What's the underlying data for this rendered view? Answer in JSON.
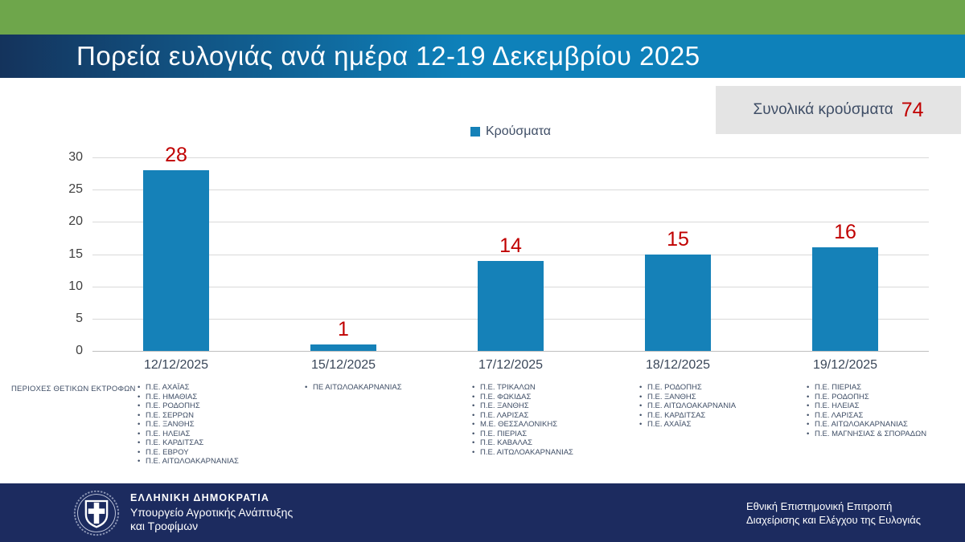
{
  "header": {
    "title": "Πορεία ευλογιάς ανά ημέρα 12-19 Δεκεμβρίου 2025"
  },
  "total_box": {
    "label": "Συνολικά κρούσματα",
    "value": "74"
  },
  "chart_data": {
    "type": "bar",
    "title": "Πορεία ευλογιάς ανά ημέρα 12-19 Δεκεμβρίου 2025",
    "categories": [
      "12/12/2025",
      "15/12/2025",
      "17/12/2025",
      "18/12/2025",
      "19/12/2025"
    ],
    "values": [
      28,
      1,
      14,
      15,
      16
    ],
    "data_labels": [
      "28",
      "1",
      "14",
      "15",
      "16"
    ],
    "legend": [
      "Κρούσματα"
    ],
    "legend_position": "top-center",
    "xlabel": "",
    "ylabel": "",
    "ylim": [
      0,
      30
    ],
    "yticks": [
      0,
      5,
      10,
      15,
      20,
      25,
      30
    ],
    "grid": true,
    "bar_color": "#1581B8",
    "data_label_color": "#C00000"
  },
  "regions": {
    "row_label": "ΠΕΡΙΟΧΕΣ ΘΕΤΙΚΩΝ ΕΚΤΡΟΦΩΝ",
    "columns": [
      [
        "Π.Ε. ΑΧΑΪΑΣ",
        "Π.Ε. ΗΜΑΘΙΑΣ",
        "Π.Ε. ΡΟΔΟΠΗΣ",
        "Π.Ε. ΣΕΡΡΩΝ",
        "Π.Ε. ΞΑΝΘΗΣ",
        "Π.Ε. ΗΛΕΙΑΣ",
        "Π.Ε. ΚΑΡΔΙΤΣΑΣ",
        "Π.Ε. ΕΒΡΟΥ",
        "Π.Ε. ΑΙΤΩΛΟΑΚΑΡΝΑΝΙΑΣ"
      ],
      [
        "ΠΕ ΑΙΤΩΛΟΑΚΑΡΝΑΝΙΑΣ"
      ],
      [
        "Π.Ε. ΤΡΙΚΑΛΩΝ",
        "Π.Ε. ΦΩΚΙΔΑΣ",
        "Π.Ε. ΞΑΝΘΗΣ",
        "Π.Ε. ΛΑΡΙΣΑΣ",
        "Μ.Ε. ΘΕΣΣΑΛΟΝΙΚΗΣ",
        "Π.Ε. ΠΙΕΡΙΑΣ",
        "Π.Ε. ΚΑΒΑΛΑΣ",
        "Π.Ε. ΑΙΤΩΛΟΑΚΑΡΝΑΝΙΑΣ"
      ],
      [
        "Π.Ε. ΡΟΔΟΠΗΣ",
        "Π.Ε. ΞΑΝΘΗΣ",
        "Π.Ε. ΑΙΤΩΛΟΑΚΑΡΝΑΝΙΑ",
        "Π.Ε. ΚΑΡΔΙΤΣΑΣ",
        "Π.Ε. ΑΧΑΪΑΣ"
      ],
      [
        "Π.Ε. ΠΙΕΡΙΑΣ",
        "Π.Ε. ΡΟΔΟΠΗΣ",
        "Π.Ε. ΗΛΕΙΑΣ",
        "Π.Ε. ΛΑΡΙΣΑΣ",
        "Π.Ε. ΑΙΤΩΛΟΑΚΑΡΝΑΝΙΑΣ",
        "Π.Ε. ΜΑΓΝΗΣΙΑΣ & ΣΠΟΡΑΔΩΝ"
      ]
    ]
  },
  "footer": {
    "left": {
      "line1": "ΕΛΛΗΝΙΚΗ ΔΗΜΟΚΡΑΤΙΑ",
      "line2": "Υπουργείο Αγροτικής Ανάπτυξης",
      "line3": "και Τροφίμων"
    },
    "right": {
      "line1": "Εθνική Επιστημονική Επιτροπή",
      "line2": "Διαχείρισης και Ελέγχου της Ευλογιάς"
    }
  },
  "colors": {
    "accent_green": "#6EA64B",
    "header_gradient_left": "#14335C",
    "header_gradient_right": "#0E81BA",
    "bar_blue": "#1581B8",
    "value_red": "#C00000",
    "footer_navy": "#1C2B5F",
    "total_box_bg": "#E4E4E4",
    "text_slate": "#3F4E66"
  }
}
